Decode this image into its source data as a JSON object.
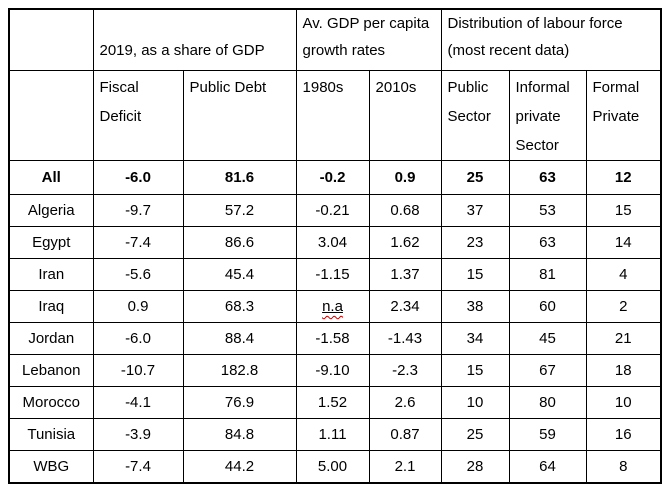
{
  "page": {
    "background_color": "#ffffff",
    "border_color": "#000000",
    "text_color": "#000000",
    "spellcheck_color": "#c00000"
  },
  "table": {
    "na_value": "n.a",
    "header_groups": [
      {
        "label": "",
        "colspan": 1
      },
      {
        "label": "2019, as a share of GDP",
        "colspan": 2
      },
      {
        "label": "Av. GDP per capita growth rates",
        "colspan": 2
      },
      {
        "label": "Distribution of labour force (most recent data)",
        "colspan": 3
      }
    ],
    "column_headers": [
      "",
      "Fiscal Deficit",
      "Public Debt",
      "1980s",
      "2010s",
      "Public Sector",
      "Informal private Sector",
      "Formal Private"
    ],
    "rows": [
      {
        "label": "All",
        "bold": true,
        "values": [
          "-6.0",
          "81.6",
          "-0.2",
          "0.9",
          "25",
          "63",
          "12"
        ]
      },
      {
        "label": "Algeria",
        "bold": false,
        "values": [
          "-9.7",
          "57.2",
          "-0.21",
          "0.68",
          "37",
          "53",
          "15"
        ]
      },
      {
        "label": "Egypt",
        "bold": false,
        "values": [
          "-7.4",
          "86.6",
          "3.04",
          "1.62",
          "23",
          "63",
          "14"
        ]
      },
      {
        "label": "Iran",
        "bold": false,
        "values": [
          "-5.6",
          "45.4",
          "-1.15",
          "1.37",
          "15",
          "81",
          "4"
        ]
      },
      {
        "label": "Iraq",
        "bold": false,
        "values": [
          "0.9",
          "68.3",
          "n.a",
          "2.34",
          "38",
          "60",
          "2"
        ]
      },
      {
        "label": "Jordan",
        "bold": false,
        "values": [
          "-6.0",
          "88.4",
          "-1.58",
          "-1.43",
          "34",
          "45",
          "21"
        ]
      },
      {
        "label": "Lebanon",
        "bold": false,
        "values": [
          "-10.7",
          "182.8",
          "-9.10",
          "-2.3",
          "15",
          "67",
          "18"
        ]
      },
      {
        "label": "Morocco",
        "bold": false,
        "values": [
          "-4.1",
          "76.9",
          "1.52",
          "2.6",
          "10",
          "80",
          "10"
        ]
      },
      {
        "label": "Tunisia",
        "bold": false,
        "values": [
          "-3.9",
          "84.8",
          "1.11",
          "0.87",
          "25",
          "59",
          "16"
        ]
      },
      {
        "label": "WBG",
        "bold": false,
        "values": [
          "-7.4",
          "44.2",
          "5.00",
          "2.1",
          "28",
          "64",
          "8"
        ]
      }
    ]
  }
}
